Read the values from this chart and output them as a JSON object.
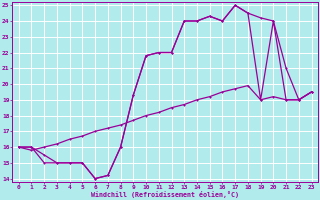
{
  "xlabel": "Windchill (Refroidissement éolien,°C)",
  "background_color": "#b2ebeb",
  "grid_color": "#c8e8e8",
  "line_color": "#990099",
  "xlim": [
    -0.5,
    23.5
  ],
  "ylim": [
    13.8,
    25.2
  ],
  "xticks": [
    0,
    1,
    2,
    3,
    4,
    5,
    6,
    7,
    8,
    9,
    10,
    11,
    12,
    13,
    14,
    15,
    16,
    17,
    18,
    19,
    20,
    21,
    22,
    23
  ],
  "yticks": [
    14,
    15,
    16,
    17,
    18,
    19,
    20,
    21,
    22,
    23,
    24,
    25
  ],
  "line1_y": [
    16.0,
    16.0,
    15.0,
    15.0,
    15.0,
    15.0,
    14.0,
    14.2,
    16.0,
    19.3,
    21.8,
    22.0,
    22.0,
    24.0,
    24.0,
    24.3,
    24.0,
    25.0,
    24.5,
    24.2,
    24.0,
    21.0,
    19.0,
    19.5
  ],
  "line2_y": [
    16.0,
    16.0,
    15.5,
    15.0,
    15.0,
    15.0,
    14.0,
    14.2,
    16.0,
    19.3,
    21.8,
    22.0,
    22.0,
    24.0,
    24.0,
    24.3,
    24.0,
    25.0,
    24.5,
    19.0,
    24.0,
    19.0,
    19.0,
    19.5
  ],
  "line3_y": [
    16.0,
    15.8,
    16.0,
    16.2,
    16.5,
    16.7,
    17.0,
    17.2,
    17.4,
    17.7,
    18.0,
    18.2,
    18.5,
    18.7,
    19.0,
    19.2,
    19.5,
    19.7,
    19.9,
    19.0,
    19.2,
    19.0,
    19.0,
    19.5
  ]
}
